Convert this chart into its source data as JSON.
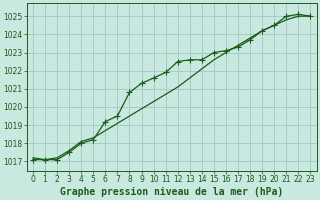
{
  "title": "Graphe pression niveau de la mer (hPa)",
  "bg_color": "#c8e8e0",
  "grid_color": "#a0c8c0",
  "line_color": "#1a5c1a",
  "ylim": [
    1016.5,
    1025.7
  ],
  "xlim": [
    -0.5,
    23.5
  ],
  "yticks": [
    1017,
    1018,
    1019,
    1020,
    1021,
    1022,
    1023,
    1024,
    1025
  ],
  "xticks": [
    0,
    1,
    2,
    3,
    4,
    5,
    6,
    7,
    8,
    9,
    10,
    11,
    12,
    13,
    14,
    15,
    16,
    17,
    18,
    19,
    20,
    21,
    22,
    23
  ],
  "series1_x": [
    0,
    1,
    2,
    3,
    4,
    5,
    6,
    7,
    8,
    9,
    10,
    11,
    12,
    13,
    14,
    15,
    16,
    17,
    18,
    19,
    20,
    21,
    22,
    23
  ],
  "series1_y": [
    1017.1,
    1017.1,
    1017.1,
    1017.5,
    1018.0,
    1018.2,
    1019.2,
    1019.5,
    1020.8,
    1021.3,
    1021.6,
    1021.9,
    1022.5,
    1022.6,
    1022.6,
    1023.0,
    1023.1,
    1023.3,
    1023.7,
    1024.2,
    1024.5,
    1025.0,
    1025.1,
    1025.0
  ],
  "series2_x": [
    0,
    1,
    2,
    3,
    4,
    5,
    6,
    7,
    8,
    9,
    10,
    11,
    12,
    13,
    14,
    15,
    16,
    17,
    18,
    19,
    20,
    21,
    22,
    23
  ],
  "series2_y": [
    1017.2,
    1017.1,
    1017.2,
    1017.6,
    1018.1,
    1018.3,
    1018.7,
    1019.1,
    1019.5,
    1019.9,
    1020.3,
    1020.7,
    1021.1,
    1021.6,
    1022.1,
    1022.6,
    1023.0,
    1023.4,
    1023.8,
    1024.2,
    1024.5,
    1024.8,
    1025.0,
    1025.0
  ],
  "title_fontsize": 7.0,
  "tick_fontsize": 5.5,
  "linewidth": 0.9,
  "markersize": 2.8
}
